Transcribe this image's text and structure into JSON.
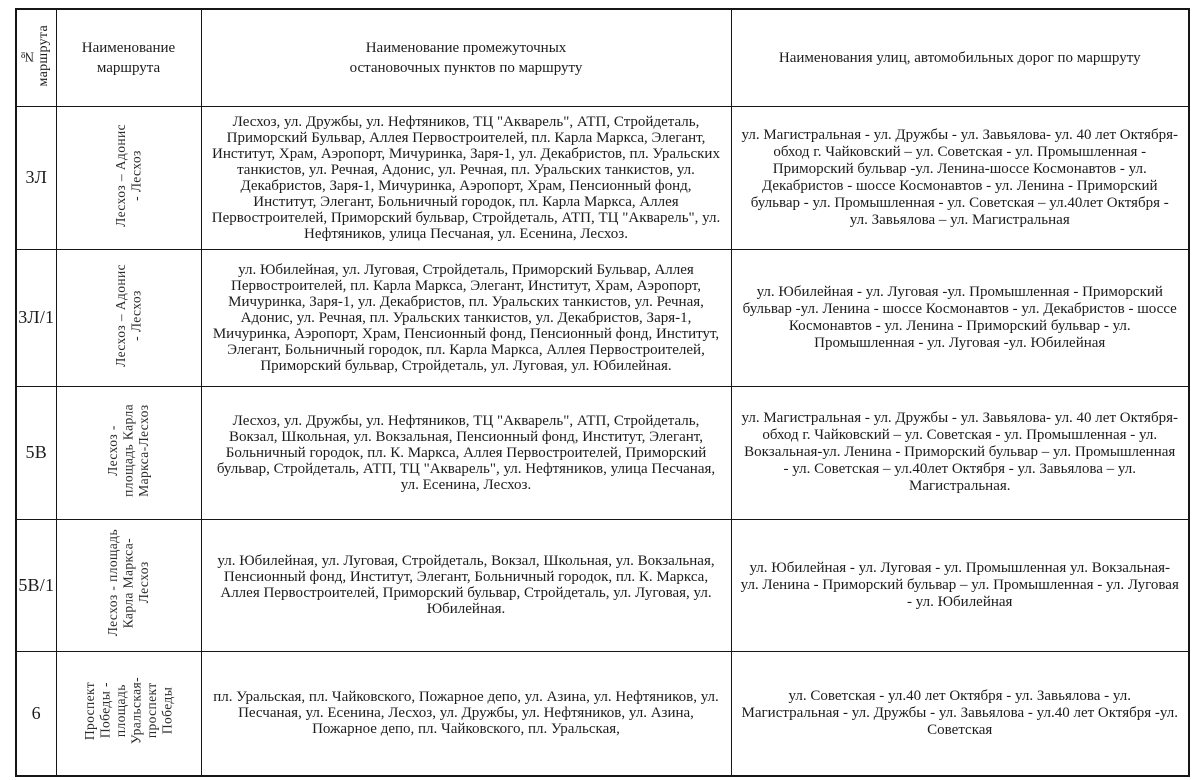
{
  "colors": {
    "border": "#161616",
    "text": "#1c1c1c"
  },
  "table": {
    "headers": {
      "route_number": "№\nмаршрута",
      "route_name": "Наименование\nмаршрута",
      "stops": "Наименование промежуточных\nостановочных пунктов по маршруту",
      "streets": "Наименования улиц, автомобильных дорог по маршруту"
    },
    "rows": [
      {
        "number": "3Л",
        "name": "Лесхоз – Адонис\n- Лесхоз",
        "stops": "Лесхоз, ул. Дружбы, ул. Нефтяников, ТЦ \"Акварель\", АТП, Стройдеталь, Приморский Бульвар, Аллея Первостроителей, пл. Карла Маркса, Элегант, Институт, Храм, Аэропорт, Мичуринка, Заря-1, ул. Декабристов, пл. Уральских танкистов, ул. Речная, Адонис, ул. Речная, пл. Уральских танкистов, ул. Декабристов, Заря-1, Мичуринка, Аэропорт, Храм, Пенсионный фонд, Институт, Элегант, Больничный городок, пл. Карла Маркса, Аллея Первостроителей, Приморский бульвар, Стройдеталь, АТП, ТЦ \"Акварель\",  ул. Нефтяников, улица Песчаная, ул. Есенина, Лесхоз.",
        "streets": "ул. Магистральная - ул. Дружбы - ул. Завьялова- ул. 40 лет Октября- обход г. Чайковский – ул. Советская - ул. Промышленная - Приморский бульвар -ул. Ленина-шоссе Космонавтов - ул. Декабристов - шоссе Космонавтов - ул. Ленина  - Приморский бульвар - ул. Промышленная - ул. Советская – ул.40лет Октября - ул. Завьялова – ул. Магистральная"
      },
      {
        "number": "3Л/1",
        "name": "Лесхоз – Адонис\n- Лесхоз",
        "stops": "ул. Юбилейная, ул. Луговая, Стройдеталь, Приморский Бульвар, Аллея Первостроителей, пл. Карла Маркса, Элегант, Институт, Храм, Аэропорт, Мичуринка, Заря-1, ул. Декабристов, пл. Уральских танкистов, ул. Речная, Адонис, ул. Речная, пл. Уральских танкистов, ул. Декабристов, Заря-1, Мичуринка, Аэропорт, Храм, Пенсионный фонд, Пенсионный фонд, Институт, Элегант, Больничный городок, пл. Карла Маркса, Аллея Первостроителей, Приморский бульвар, Стройдеталь, ул. Луговая, ул. Юбилейная.",
        "streets": "ул. Юбилейная - ул. Луговая -ул. Промышленная - Приморский бульвар -ул. Ленина - шоссе Космонавтов - ул. Декабристов - шоссе Космонавтов - ул. Ленина - Приморский бульвар - ул. Промышленная - ул. Луговая -ул. Юбилейная"
      },
      {
        "number": "5В",
        "name": "Лесхоз -\nплощадь Карла\nМаркса-Лесхоз",
        "stops": "Лесхоз, ул. Дружбы, ул. Нефтяников, ТЦ \"Акварель\", АТП, Стройдеталь, Вокзал, Школьная, ул. Вокзальная, Пенсионный фонд, Институт, Элегант, Больничный городок,  пл. К. Маркса, Аллея Первостроителей, Приморский бульвар, Стройдеталь, АТП, ТЦ \"Акварель\",  ул. Нефтяников, улица Песчаная, ул. Есенина, Лесхоз.",
        "streets": "ул. Магистральная - ул. Дружбы - ул. Завьялова- ул. 40 лет Октября- обход г. Чайковский – ул. Советская - ул. Промышленная - ул. Вокзальная-ул. Ленина - Приморский бульвар – ул. Промышленная - ул. Советская – ул.40лет Октября - ул. Завьялова – ул. Магистральная."
      },
      {
        "number": "5В/1",
        "name": "Лесхоз - площадь\nКарла Маркса-\nЛесхоз",
        "stops": "ул. Юбилейная, ул. Луговая, Стройдеталь, Вокзал,  Школьная, ул. Вокзальная, Пенсионный фонд, Институт, Элегант, Больничный городок,  пл. К. Маркса, Аллея Первостроителей, Приморский бульвар, Стройдеталь, ул. Луговая, ул. Юбилейная.",
        "streets": "ул. Юбилейная - ул. Луговая - ул. Промышленная ул. Вокзальная- ул. Ленина - Приморский бульвар – ул. Промышленная - ул. Луговая - ул. Юбилейная"
      },
      {
        "number": "6",
        "name": "Проспект\nПобеды -\nплощадь\nУральская-\nпроспект\nПобеды",
        "stops": "пл. Уральская, пл. Чайковского, Пожарное депо, ул. Азина, ул. Нефтяников, ул. Песчаная, ул. Есенина, Лесхоз, ул. Дружбы, ул. Нефтяников, ул. Азина, Пожарное депо, пл. Чайковского, пл. Уральская,",
        "streets": "ул. Советская - ул.40 лет Октября - ул. Завьялова - ул. Магистральная - ул. Дружбы - ул. Завьялова - ул.40 лет Октября -ул. Советская"
      }
    ]
  }
}
